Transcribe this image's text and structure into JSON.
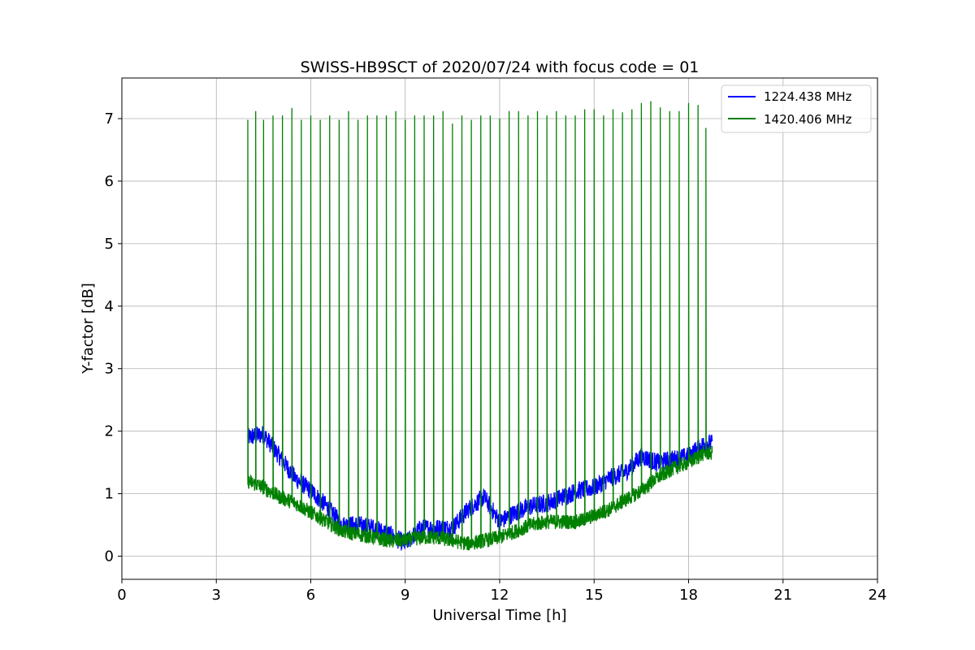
{
  "chart_data": {
    "type": "line",
    "title": "SWISS-HB9SCT of 2020/07/24 with focus code = 01",
    "xlabel": "Universal Time [h]",
    "ylabel": "Y-factor [dB]",
    "xlim": [
      0,
      24
    ],
    "ylim": [
      -0.37,
      7.65
    ],
    "xticks": [
      0,
      3,
      6,
      9,
      12,
      15,
      18,
      21,
      24
    ],
    "yticks": [
      0,
      1,
      2,
      3,
      4,
      5,
      6,
      7
    ],
    "grid": true,
    "legend_position": "top-right",
    "series": [
      {
        "name": "1224.438 MHz",
        "color": "#0000ff",
        "x": [
          4.0,
          4.5,
          5.0,
          5.5,
          6.0,
          6.5,
          7.0,
          7.5,
          8.0,
          8.5,
          9.0,
          9.5,
          10.0,
          10.5,
          11.0,
          11.5,
          12.0,
          12.5,
          13.0,
          13.5,
          14.0,
          14.5,
          15.0,
          15.5,
          16.0,
          16.5,
          17.0,
          17.5,
          18.0,
          18.5,
          18.75
        ],
        "y": [
          1.9,
          1.95,
          1.6,
          1.25,
          1.05,
          0.8,
          0.5,
          0.5,
          0.45,
          0.35,
          0.2,
          0.45,
          0.45,
          0.45,
          0.75,
          0.95,
          0.55,
          0.7,
          0.8,
          0.85,
          0.95,
          1.05,
          1.1,
          1.25,
          1.35,
          1.6,
          1.5,
          1.55,
          1.6,
          1.8,
          1.8
        ],
        "noise_amplitude_db": 0.15
      },
      {
        "name": "1420.406 MHz",
        "color": "#008000",
        "x": [
          4.0,
          4.5,
          5.0,
          5.5,
          6.0,
          6.5,
          7.0,
          7.5,
          8.0,
          8.5,
          9.0,
          9.5,
          10.0,
          10.5,
          11.0,
          11.5,
          12.0,
          12.5,
          13.0,
          13.5,
          14.0,
          14.5,
          15.0,
          15.5,
          16.0,
          16.5,
          17.0,
          17.5,
          18.0,
          18.5,
          18.75
        ],
        "y": [
          1.2,
          1.1,
          0.95,
          0.85,
          0.7,
          0.55,
          0.4,
          0.35,
          0.3,
          0.25,
          0.25,
          0.3,
          0.3,
          0.25,
          0.2,
          0.25,
          0.3,
          0.4,
          0.5,
          0.55,
          0.55,
          0.55,
          0.65,
          0.75,
          0.9,
          1.05,
          1.25,
          1.4,
          1.5,
          1.65,
          1.65
        ],
        "noise_amplitude_db": 0.12,
        "spikes": [
          {
            "x": 4.0,
            "y": 6.98
          },
          {
            "x": 4.25,
            "y": 7.12
          },
          {
            "x": 4.5,
            "y": 6.98
          },
          {
            "x": 4.8,
            "y": 7.05
          },
          {
            "x": 5.1,
            "y": 7.05
          },
          {
            "x": 5.4,
            "y": 7.17
          },
          {
            "x": 5.7,
            "y": 6.98
          },
          {
            "x": 6.0,
            "y": 7.05
          },
          {
            "x": 6.3,
            "y": 6.98
          },
          {
            "x": 6.6,
            "y": 7.05
          },
          {
            "x": 6.9,
            "y": 6.98
          },
          {
            "x": 7.2,
            "y": 7.12
          },
          {
            "x": 7.5,
            "y": 6.98
          },
          {
            "x": 7.8,
            "y": 7.05
          },
          {
            "x": 8.1,
            "y": 7.05
          },
          {
            "x": 8.4,
            "y": 7.05
          },
          {
            "x": 8.7,
            "y": 7.12
          },
          {
            "x": 9.0,
            "y": 6.98
          },
          {
            "x": 9.3,
            "y": 7.05
          },
          {
            "x": 9.6,
            "y": 7.05
          },
          {
            "x": 9.9,
            "y": 7.05
          },
          {
            "x": 10.2,
            "y": 7.12
          },
          {
            "x": 10.5,
            "y": 6.92
          },
          {
            "x": 10.8,
            "y": 7.05
          },
          {
            "x": 11.1,
            "y": 6.98
          },
          {
            "x": 11.4,
            "y": 7.05
          },
          {
            "x": 11.7,
            "y": 7.05
          },
          {
            "x": 12.0,
            "y": 7.0
          },
          {
            "x": 12.3,
            "y": 7.12
          },
          {
            "x": 12.6,
            "y": 7.12
          },
          {
            "x": 12.9,
            "y": 7.05
          },
          {
            "x": 13.2,
            "y": 7.12
          },
          {
            "x": 13.5,
            "y": 7.05
          },
          {
            "x": 13.8,
            "y": 7.12
          },
          {
            "x": 14.1,
            "y": 7.05
          },
          {
            "x": 14.4,
            "y": 7.05
          },
          {
            "x": 14.7,
            "y": 7.15
          },
          {
            "x": 15.0,
            "y": 7.15
          },
          {
            "x": 15.3,
            "y": 7.05
          },
          {
            "x": 15.6,
            "y": 7.15
          },
          {
            "x": 15.9,
            "y": 7.1
          },
          {
            "x": 16.2,
            "y": 7.15
          },
          {
            "x": 16.5,
            "y": 7.25
          },
          {
            "x": 16.8,
            "y": 7.28
          },
          {
            "x": 17.1,
            "y": 7.18
          },
          {
            "x": 17.4,
            "y": 7.12
          },
          {
            "x": 17.7,
            "y": 7.12
          },
          {
            "x": 18.0,
            "y": 7.25
          },
          {
            "x": 18.3,
            "y": 7.22
          },
          {
            "x": 18.55,
            "y": 6.85
          }
        ]
      }
    ]
  }
}
